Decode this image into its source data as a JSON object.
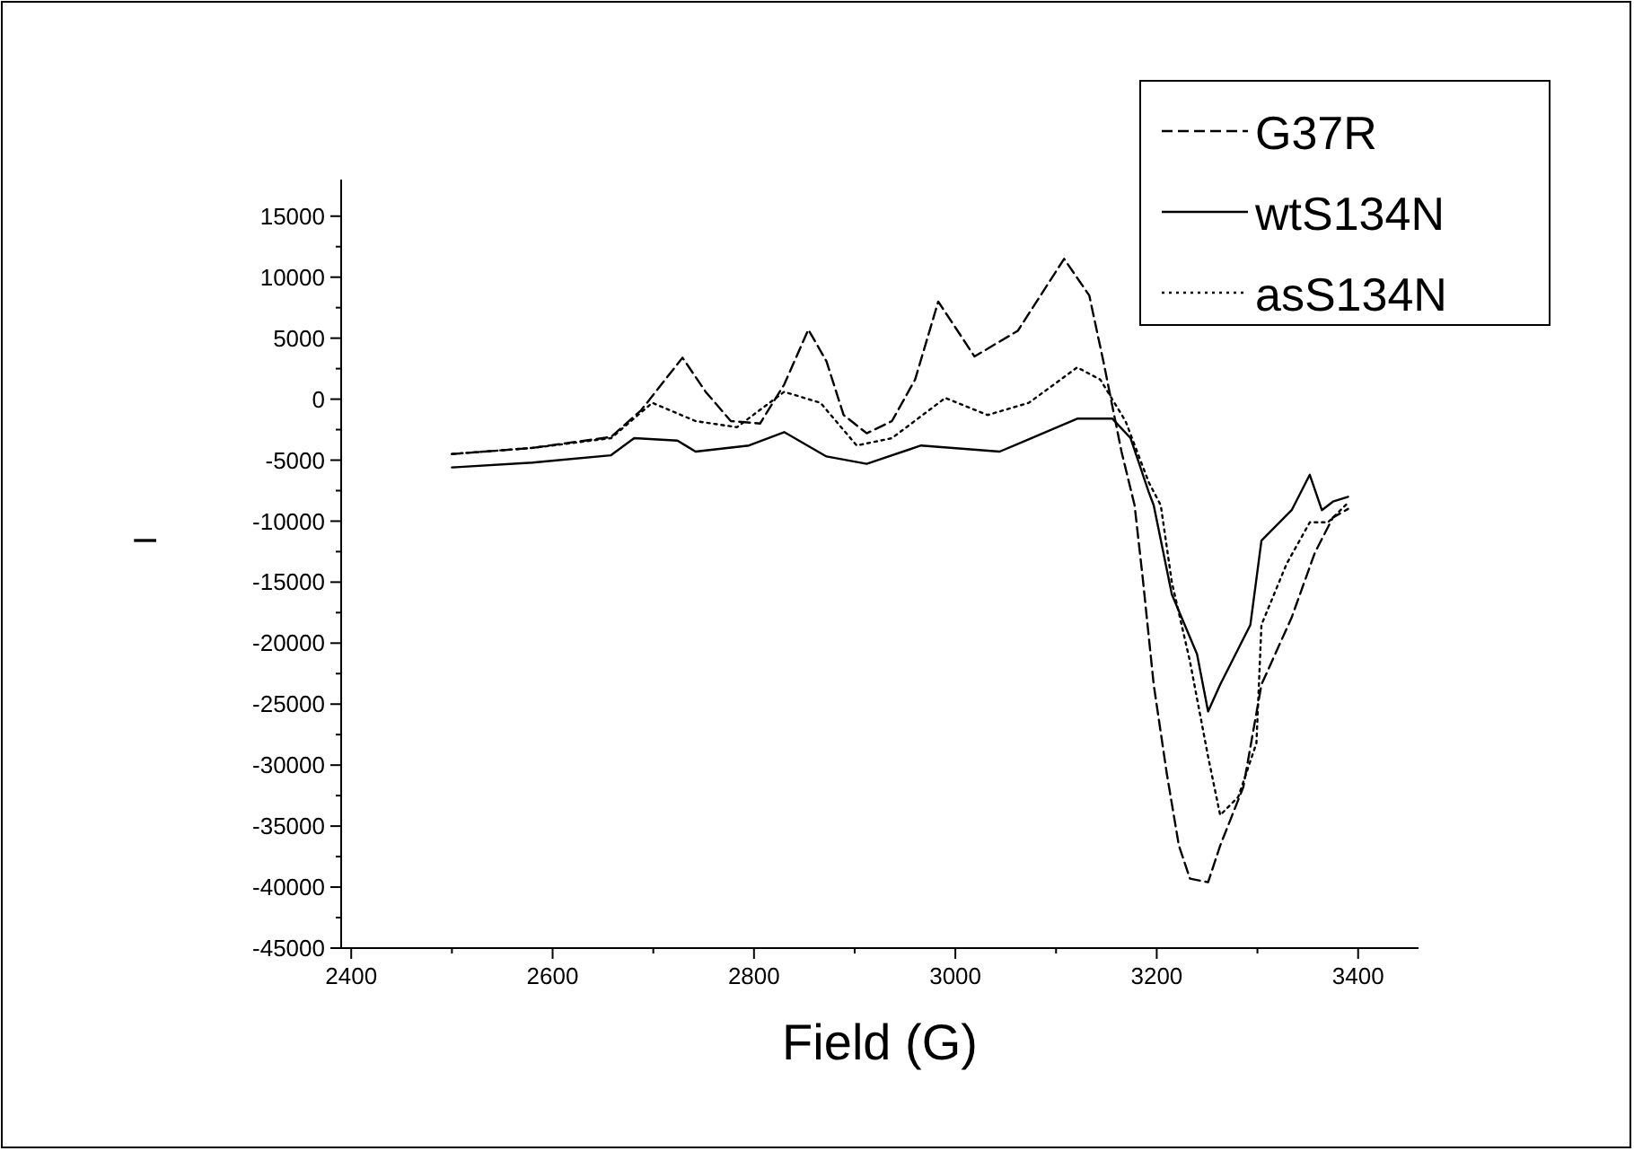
{
  "chart_data": {
    "type": "line",
    "xlabel": "Field (G)",
    "ylabel": "I",
    "xlim": [
      2390,
      3460
    ],
    "ylim": [
      -45000,
      18000
    ],
    "xticks": [
      2400,
      2600,
      2800,
      3000,
      3200,
      3400
    ],
    "yticks": [
      -45000,
      -40000,
      -35000,
      -30000,
      -25000,
      -20000,
      -15000,
      -10000,
      -5000,
      0,
      5000,
      10000,
      15000
    ],
    "legend": "top right",
    "grid": false,
    "marker": "none",
    "series": [
      {
        "name": "G37R",
        "color": "#000000",
        "line_style": "dashed",
        "x": [
          2500,
          2580,
          2658,
          2688,
          2729,
          2752,
          2777,
          2806,
          2830,
          2854,
          2872,
          2889,
          2912,
          2937,
          2960,
          2983,
          3019,
          3062,
          3108,
          3133,
          3147,
          3165,
          3178,
          3186,
          3197,
          3210,
          3222,
          3233,
          3251,
          3263,
          3286,
          3304,
          3334,
          3357,
          3375,
          3390
        ],
        "values": [
          -4500,
          -4000,
          -3100,
          -900,
          3400,
          600,
          -1800,
          -2000,
          1200,
          5700,
          3100,
          -1300,
          -2800,
          -1800,
          1600,
          8000,
          3500,
          5600,
          11500,
          8500,
          3100,
          -4300,
          -8700,
          -14600,
          -23400,
          -30700,
          -36600,
          -39300,
          -39600,
          -36600,
          -31800,
          -23400,
          -17900,
          -12600,
          -9700,
          -9000
        ]
      },
      {
        "name": "wtS134N",
        "color": "#000000",
        "line_style": "solid",
        "x": [
          2500,
          2580,
          2658,
          2681,
          2724,
          2742,
          2795,
          2830,
          2872,
          2912,
          2966,
          3044,
          3067,
          3121,
          3156,
          3174,
          3192,
          3197,
          3215,
          3240,
          3251,
          3263,
          3293,
          3304,
          3334,
          3352,
          3364,
          3375,
          3390
        ],
        "values": [
          -5600,
          -5200,
          -4600,
          -3200,
          -3400,
          -4300,
          -3800,
          -2700,
          -4700,
          -5300,
          -3800,
          -4300,
          -3500,
          -1600,
          -1600,
          -3200,
          -7600,
          -8700,
          -16000,
          -20900,
          -25600,
          -23400,
          -18500,
          -11600,
          -9100,
          -6200,
          -9100,
          -8400,
          -8000
        ]
      },
      {
        "name": "asS134N",
        "color": "#000000",
        "line_style": "dotted",
        "x": [
          2500,
          2580,
          2658,
          2699,
          2742,
          2783,
          2830,
          2866,
          2902,
          2937,
          2990,
          3032,
          3073,
          3121,
          3144,
          3169,
          3192,
          3204,
          3215,
          3233,
          3251,
          3263,
          3281,
          3299,
          3304,
          3329,
          3352,
          3370,
          3390
        ],
        "values": [
          -4500,
          -4000,
          -3200,
          -300,
          -1800,
          -2300,
          600,
          -300,
          -3800,
          -3200,
          100,
          -1300,
          -300,
          2600,
          1600,
          -1800,
          -6800,
          -8700,
          -15000,
          -21500,
          -29300,
          -34100,
          -32600,
          -28200,
          -18500,
          -13500,
          -10100,
          -10100,
          -8500
        ]
      }
    ]
  }
}
